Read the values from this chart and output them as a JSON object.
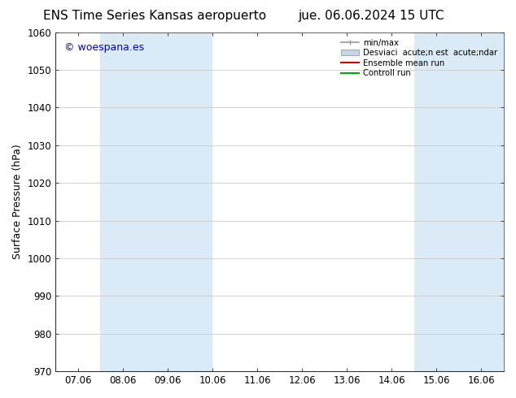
{
  "title_left": "ENS Time Series Kansas aeropuerto",
  "title_right": "jue. 06.06.2024 15 UTC",
  "ylabel": "Surface Pressure (hPa)",
  "ylim": [
    970,
    1060
  ],
  "yticks": [
    970,
    980,
    990,
    1000,
    1010,
    1020,
    1030,
    1040,
    1050,
    1060
  ],
  "xlim_labels": [
    "07.06",
    "08.06",
    "09.06",
    "10.06",
    "11.06",
    "12.06",
    "13.06",
    "14.06",
    "15.06",
    "16.06"
  ],
  "watermark": "© woespana.es",
  "watermark_color": "#0000cc",
  "bg_color": "#ffffff",
  "plot_bg_color": "#ffffff",
  "shade_color": "#daeaf7",
  "legend_label_minmax": "min/max",
  "legend_label_std": "Desviaci  acute;n est  acute;ndar",
  "legend_label_ens": "Ensemble mean run",
  "legend_label_ctrl": "Controll run",
  "grid_color": "#cccccc",
  "tick_fontsize": 8.5,
  "title_fontsize": 11,
  "ylabel_fontsize": 9
}
